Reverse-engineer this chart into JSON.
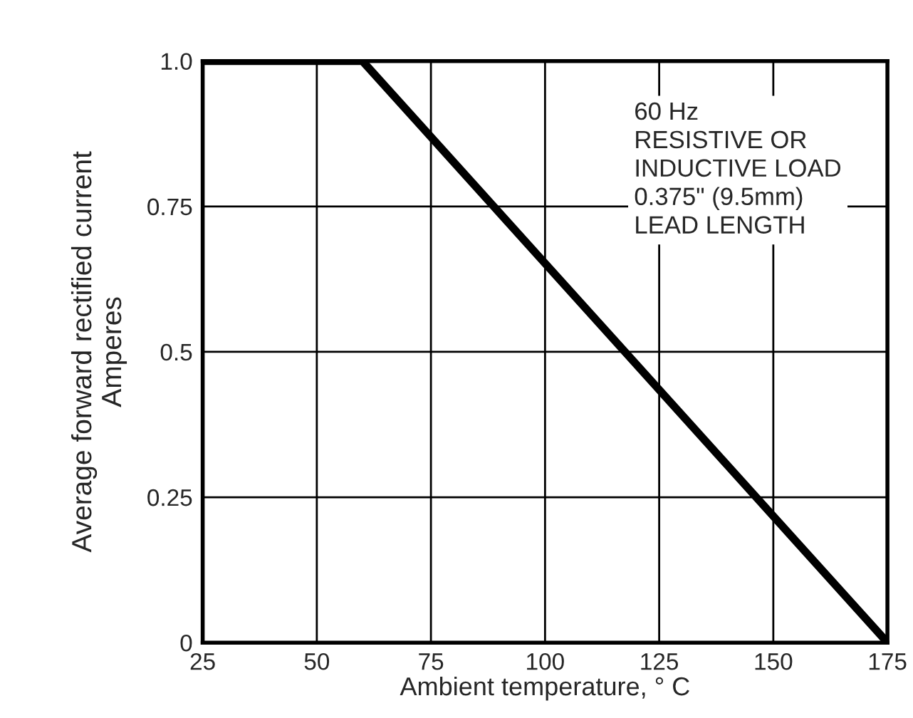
{
  "chart_data": {
    "type": "line",
    "x": [
      25,
      60,
      175
    ],
    "series": [
      {
        "color": "#000000",
        "values": [
          1.0,
          1.0,
          0
        ]
      }
    ],
    "xlabel": "Ambient temperature, ° C",
    "ylabel": "Average forward rectified current\nAmperes",
    "xlim": [
      25,
      175
    ],
    "xticks": [
      25,
      50,
      75,
      100,
      125,
      150,
      175
    ],
    "ylim": [
      0,
      1.0
    ],
    "yticks": [
      {
        "value": 0,
        "label": "0"
      },
      0.25,
      0.5,
      0.75,
      {
        "value": 1.0,
        "label": "1.0"
      }
    ],
    "grid": true,
    "marker": "none",
    "line_style": "solid",
    "annotations": [
      "60 Hz\nRESISTIVE OR\nINDUCTIVE LOAD\n0.375\" (9.5mm)\nLEAD LENGTH"
    ]
  }
}
